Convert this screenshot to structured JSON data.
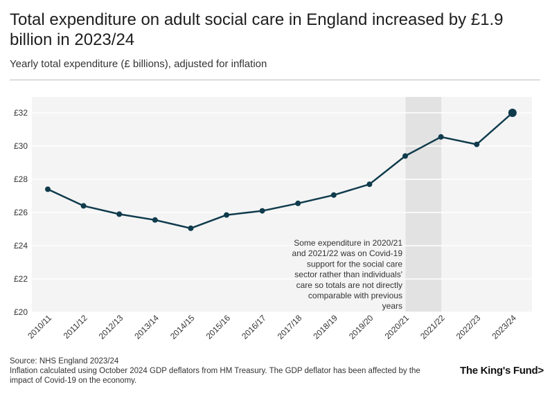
{
  "title": "Total expenditure on adult social care in England increased by £1.9 billion in 2023/24",
  "subtitle": "Yearly total expenditure (£ billions), adjusted for inflation",
  "footer": {
    "source": "Source: NHS England 2023/24",
    "note": "Inflation calculated using October 2024 GDP deflators from HM Treasury. The GDP deflator has been affected by the impact of Covid-19 on the economy."
  },
  "logo": "The King's Fund>",
  "colors": {
    "line": "#0f3b4c",
    "plot_bg": "#f4f4f4",
    "shade": "#e2e2e2",
    "grid": "#ffffff"
  },
  "chart_data": {
    "type": "line",
    "title": "Total expenditure on adult social care in England increased by £1.9 billion in 2023/24",
    "xlabel": "",
    "ylabel": "Yearly total expenditure (£ billions), adjusted for inflation",
    "categories": [
      "2010/11",
      "2011/12",
      "2012/13",
      "2013/14",
      "2014/15",
      "2015/16",
      "2016/17",
      "2017/18",
      "2018/19",
      "2019/20",
      "2020/21",
      "2021/22",
      "2022/23",
      "2023/24"
    ],
    "series": [
      {
        "name": "Total expenditure",
        "values": [
          27.4,
          26.4,
          25.9,
          25.55,
          25.05,
          25.85,
          26.1,
          26.55,
          27.05,
          27.7,
          29.4,
          30.55,
          30.1,
          32.0
        ]
      }
    ],
    "ylim": [
      20,
      33
    ],
    "yticks": [
      20,
      22,
      24,
      26,
      28,
      30,
      32
    ],
    "ytick_labels": [
      "£20",
      "£22",
      "£24",
      "£26",
      "£28",
      "£30",
      "£32"
    ],
    "shaded_range": [
      "2020/21",
      "2021/22"
    ],
    "annotation": {
      "lines": [
        "Some expenditure in 2020/21",
        "and 2021/22 was on Covid-19",
        "support for the social care",
        "sector rather than individuals'",
        "care so totals are not directly",
        "comparable with previous",
        "years"
      ]
    }
  }
}
